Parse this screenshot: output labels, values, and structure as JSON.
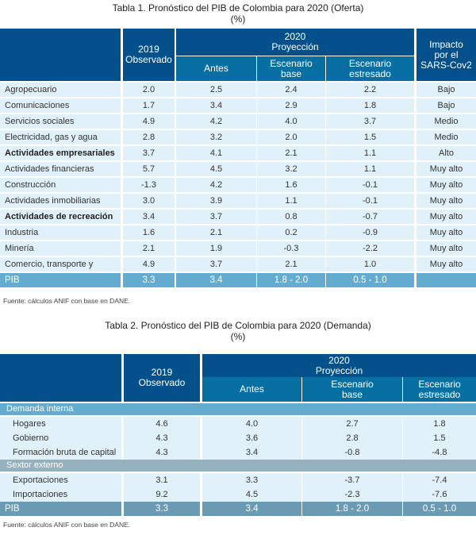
{
  "table1": {
    "title": "Tabla 1. Pronóstico del PIB de Colombia para 2020 (Oferta)",
    "unit": "(%)",
    "headers": {
      "observed_year": "2019",
      "observed_label": "Observado",
      "projection_year": "2020",
      "projection_label": "Proyección",
      "antes": "Antes",
      "esc_base_1": "Escenario",
      "esc_base_2": "base",
      "esc_estr_1": "Escenario",
      "esc_estr_2": "estresado",
      "impact_1": "Impacto",
      "impact_2": "por el",
      "impact_3": "SARS-Cov2"
    },
    "rows": [
      {
        "label": "Agropecuario",
        "obs": "2.0",
        "antes": "2.5",
        "base": "2.4",
        "estr": "2.2",
        "impacto": "Bajo",
        "bold": false
      },
      {
        "label": "Comunicaciones",
        "obs": "1.7",
        "antes": "3.4",
        "base": "2.9",
        "estr": "1.8",
        "impacto": "Bajo",
        "bold": false
      },
      {
        "label": "Servicios sociales",
        "obs": "4.9",
        "antes": "4.2",
        "base": "4.0",
        "estr": "3.7",
        "impacto": "Medio",
        "bold": false
      },
      {
        "label": "Electricidad, gas y agua",
        "obs": "2.8",
        "antes": "3.2",
        "base": "2.0",
        "estr": "1.5",
        "impacto": "Medio",
        "bold": false
      },
      {
        "label": "Actividades empresariales",
        "obs": "3.7",
        "antes": "4.1",
        "base": "2.1",
        "estr": "1.1",
        "impacto": "Alto",
        "bold": true
      },
      {
        "label": "Actividades financieras",
        "obs": "5.7",
        "antes": "4.5",
        "base": "3.2",
        "estr": "1.1",
        "impacto": "Muy alto",
        "bold": false
      },
      {
        "label": "Construcción",
        "obs": "-1.3",
        "antes": "4.2",
        "base": "1.6",
        "estr": "-0.1",
        "impacto": "Muy alto",
        "bold": false
      },
      {
        "label": "Actividades inmobiliarias",
        "obs": "3.0",
        "antes": "3.9",
        "base": "1.1",
        "estr": "-0.1",
        "impacto": "Muy alto",
        "bold": false
      },
      {
        "label": "Actividades de recreación",
        "obs": "3.4",
        "antes": "3.7",
        "base": "0.8",
        "estr": "-0.7",
        "impacto": "Muy alto",
        "bold": true
      },
      {
        "label": "Industria",
        "obs": "1.6",
        "antes": "2.1",
        "base": "0.2",
        "estr": "-0.9",
        "impacto": "Muy alto",
        "bold": false
      },
      {
        "label": "Minería",
        "obs": "2.1",
        "antes": "1.9",
        "base": "-0.3",
        "estr": "-2.2",
        "impacto": "Muy alto",
        "bold": false
      },
      {
        "label": "Comercio, transporte y turismo",
        "obs": "4.9",
        "antes": "3.7",
        "base": "2.1",
        "estr": "1.0",
        "impacto": "Muy alto",
        "bold": false
      }
    ],
    "total": {
      "label": "PIB",
      "obs": "3.3",
      "antes": "3.4",
      "base": "1.8 - 2.0",
      "estr": "0.5 - 1.0",
      "impacto": ""
    },
    "source": "Fuente: cálculos ANIF con base en DANE."
  },
  "table2": {
    "title": "Tabla 2. Pronóstico del PIB de Colombia para 2020 (Demanda)",
    "unit": "(%)",
    "headers": {
      "observed_year": "2019",
      "observed_label": "Observado",
      "projection_year": "2020",
      "projection_label": "Proyección",
      "antes": "Antes",
      "esc_base_1": "Escenario",
      "esc_base_2": "base",
      "esc_estr_1": "Escenario",
      "esc_estr_2": "estresado"
    },
    "sections": [
      {
        "label": "Demanda interna",
        "rows": [
          {
            "label": "Hogares",
            "obs": "4.6",
            "antes": "4.0",
            "base": "2.7",
            "estr": "1.8"
          },
          {
            "label": "Gobierno",
            "obs": "4.3",
            "antes": "3.6",
            "base": "2.8",
            "estr": "1.5"
          },
          {
            "label": "Formación bruta de capital",
            "obs": "4.3",
            "antes": "3.4",
            "base": "-0.8",
            "estr": "-4.8"
          }
        ]
      },
      {
        "label": "Sextor externo",
        "rows": [
          {
            "label": "Exportaciones",
            "obs": "3.1",
            "antes": "3.3",
            "base": "-3.7",
            "estr": "-7.4"
          },
          {
            "label": "Importaciones",
            "obs": "9.2",
            "antes": "4.5",
            "base": "-2.3",
            "estr": "-7.6"
          }
        ]
      }
    ],
    "total": {
      "label": "PIB",
      "obs": "3.3",
      "antes": "3.4",
      "base": "1.8 - 2.0",
      "estr": "0.5 - 1.0"
    },
    "source": "Fuente: cálculos ANIF con base en DANE."
  }
}
